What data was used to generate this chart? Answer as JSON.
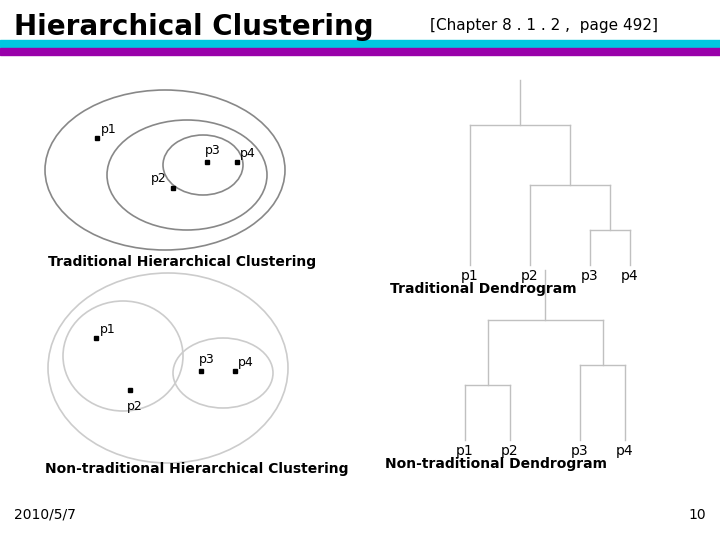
{
  "title": "Hierarchical Clustering",
  "chapter_ref": "[Chapter 8 . 1 . 2 ,  page 492]",
  "date": "2010/5/7",
  "page_num": "10",
  "bg_color": "#ffffff",
  "title_color": "#000000",
  "bar_cyan": "#00c8e0",
  "bar_purple": "#9900aa",
  "labels_trad_clust": "Traditional Hierarchical Clustering",
  "labels_trad_dendro": "Traditional Dendrogram",
  "labels_nontrad_clust": "Non-traditional Hierarchical Clustering",
  "labels_nontrad_dendro": "Non-traditional Dendrogram",
  "dendro_color": "#c0c0c0",
  "ellipse_color_dark": "#888888",
  "ellipse_color_light": "#cccccc"
}
